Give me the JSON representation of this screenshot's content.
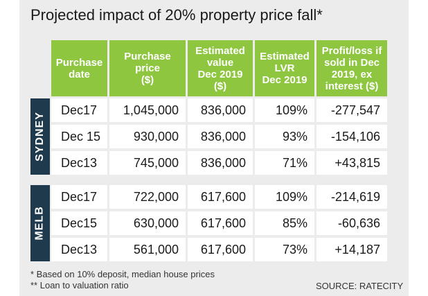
{
  "chart_data": {
    "type": "table",
    "title": "Projected impact of 20% property price fall*",
    "columns": [
      "Purchase date",
      "Purchase price ($)",
      "Estimated value Dec 2019 ($)",
      "Estimated LVR Dec 2019",
      "Profit/loss if sold in Dec 2019, ex interest ($)"
    ],
    "column_lines": [
      [
        "Purchase",
        "date"
      ],
      [
        "Purchase",
        "price",
        "($)"
      ],
      [
        "Estimated",
        "value",
        "Dec 2019",
        "($)"
      ],
      [
        "Estimated",
        "LVR",
        "Dec 2019"
      ],
      [
        "Profit/loss if",
        "sold in Dec",
        "2019, ex",
        "interest ($)"
      ]
    ],
    "groups": [
      {
        "label": "SYDNEY",
        "rows": [
          [
            "Dec17",
            "1,045,000",
            "836,000",
            "109%",
            "-277,547"
          ],
          [
            "Dec 15",
            "930,000",
            "836,000",
            "93%",
            "-154,106"
          ],
          [
            "Dec13",
            "745,000",
            "836,000",
            "71%",
            "+43,815"
          ]
        ]
      },
      {
        "label": "MELB",
        "rows": [
          [
            "Dec17",
            "722,000",
            "617,600",
            "109%",
            "-214,619"
          ],
          [
            "Dec15",
            "630,000",
            "617,600",
            "85%",
            "-60,636"
          ],
          [
            "Dec13",
            "561,000",
            "617,600",
            "73%",
            "+14,187"
          ]
        ]
      }
    ],
    "footnotes": [
      "* Based on 10% deposit, median house prices",
      "** Loan to valuation ratio"
    ],
    "source": "SOURCE: RATECITY"
  },
  "colors": {
    "header": "#8ec63f",
    "group_label": "#1e3a4c",
    "panel": "#ececec",
    "cell": "#ffffff"
  }
}
